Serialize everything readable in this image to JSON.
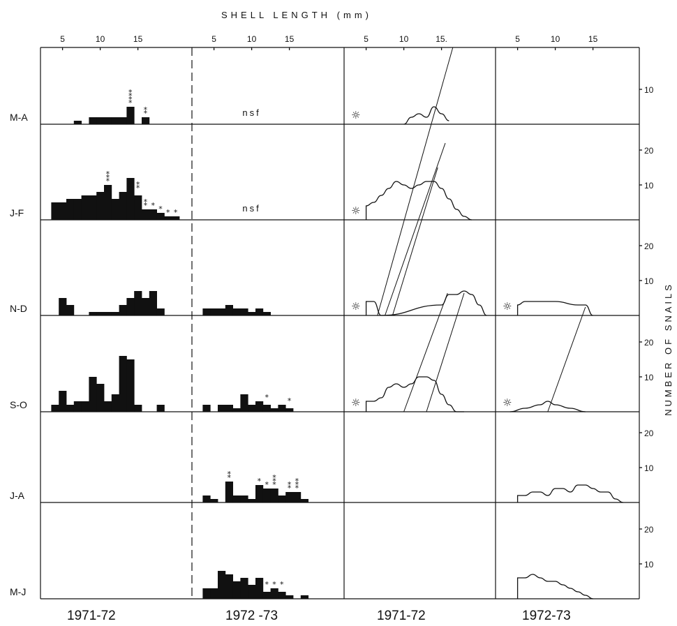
{
  "title": "SHELL LENGTH (mm)",
  "y_title": "NUMBER OF SNAILS",
  "nsf": "nsf",
  "rows": [
    "M-A",
    "J-F",
    "N-D",
    "S-O",
    "J-A",
    "M-J"
  ],
  "column_labels": [
    "1971-72",
    "1972 -73",
    "1971-72",
    "1972-73"
  ],
  "x_ticks": [
    "5",
    "10",
    "15"
  ],
  "x_ticks_col3": [
    "5",
    "10",
    "15."
  ],
  "y_ticks": [
    "10",
    "20"
  ],
  "chart_data": [
    {
      "type": "bar",
      "panel": "1971-72 histograms",
      "xlabel": "SHELL LENGTH (mm)",
      "ylabel": "NUMBER OF SNAILS",
      "xlim": [
        3,
        21.5
      ],
      "bin_width_mm": 1,
      "series": [
        {
          "row": "M-A",
          "bins": [
            [
              7,
              1
            ],
            [
              9,
              2
            ],
            [
              10,
              2
            ],
            [
              11,
              2
            ],
            [
              12,
              2
            ],
            [
              13,
              2
            ],
            [
              14,
              5
            ],
            [
              16,
              2
            ]
          ]
        },
        {
          "row": "J-F",
          "bins": [
            [
              4,
              5
            ],
            [
              5,
              5
            ],
            [
              6,
              6
            ],
            [
              7,
              6
            ],
            [
              8,
              7
            ],
            [
              9,
              7
            ],
            [
              10,
              8
            ],
            [
              11,
              10
            ],
            [
              12,
              6
            ],
            [
              13,
              8
            ],
            [
              14,
              12
            ],
            [
              15,
              7
            ],
            [
              16,
              3
            ],
            [
              17,
              3
            ],
            [
              18,
              2
            ],
            [
              19,
              1
            ],
            [
              20,
              1
            ]
          ]
        },
        {
          "row": "N-D",
          "bins": [
            [
              5,
              5
            ],
            [
              6,
              3
            ],
            [
              9,
              1
            ],
            [
              10,
              1
            ],
            [
              11,
              1
            ],
            [
              12,
              1
            ],
            [
              13,
              3
            ],
            [
              14,
              5
            ],
            [
              15,
              7
            ],
            [
              16,
              5
            ],
            [
              17,
              7
            ],
            [
              18,
              2
            ]
          ]
        },
        {
          "row": "S-O",
          "bins": [
            [
              4,
              2
            ],
            [
              5,
              6
            ],
            [
              6,
              2
            ],
            [
              7,
              3
            ],
            [
              8,
              3
            ],
            [
              9,
              10
            ],
            [
              10,
              8
            ],
            [
              11,
              3
            ],
            [
              12,
              5
            ],
            [
              13,
              16
            ],
            [
              14,
              15
            ],
            [
              15,
              2
            ],
            [
              18,
              2
            ]
          ]
        }
      ]
    },
    {
      "type": "bar",
      "panel": "1972-73 histograms",
      "xlabel": "SHELL LENGTH (mm)",
      "ylabel": "NUMBER OF SNAILS",
      "xlim": [
        3,
        21.5
      ],
      "bin_width_mm": 1,
      "series": [
        {
          "row": "M-A",
          "bins": []
        },
        {
          "row": "J-F",
          "bins": []
        },
        {
          "row": "N-D",
          "bins": [
            [
              4,
              2
            ],
            [
              5,
              2
            ],
            [
              6,
              2
            ],
            [
              7,
              3
            ],
            [
              8,
              2
            ],
            [
              9,
              2
            ],
            [
              10,
              1
            ],
            [
              11,
              2
            ],
            [
              12,
              1
            ]
          ]
        },
        {
          "row": "S-O",
          "bins": [
            [
              4,
              2
            ],
            [
              6,
              2
            ],
            [
              7,
              2
            ],
            [
              8,
              1
            ],
            [
              9,
              5
            ],
            [
              10,
              2
            ],
            [
              11,
              3
            ],
            [
              12,
              2
            ],
            [
              13,
              1
            ],
            [
              14,
              2
            ],
            [
              15,
              1
            ]
          ]
        },
        {
          "row": "J-A",
          "bins": [
            [
              4,
              2
            ],
            [
              5,
              1
            ],
            [
              7,
              6
            ],
            [
              8,
              2
            ],
            [
              9,
              2
            ],
            [
              10,
              1
            ],
            [
              11,
              5
            ],
            [
              12,
              4
            ],
            [
              13,
              4
            ],
            [
              14,
              2
            ],
            [
              15,
              3
            ],
            [
              16,
              3
            ],
            [
              17,
              1
            ]
          ]
        },
        {
          "row": "M-J",
          "bins": [
            [
              4,
              3
            ],
            [
              5,
              3
            ],
            [
              6,
              8
            ],
            [
              7,
              7
            ],
            [
              8,
              5
            ],
            [
              9,
              6
            ],
            [
              10,
              4
            ],
            [
              11,
              6
            ],
            [
              12,
              2
            ],
            [
              13,
              3
            ],
            [
              14,
              2
            ],
            [
              15,
              1
            ],
            [
              17,
              1
            ]
          ]
        }
      ]
    },
    {
      "type": "line",
      "panel": "1971-72 smoothed distributions",
      "xlabel": "SHELL LENGTH (mm)",
      "ylabel": "NUMBER OF SNAILS",
      "xlim": [
        3,
        21.5
      ],
      "series": [
        {
          "row": "M-A",
          "x": [
            10,
            11,
            12,
            13,
            14,
            15,
            16
          ],
          "y": [
            0,
            2,
            3,
            2,
            5,
            3,
            1
          ]
        },
        {
          "row": "J-F",
          "x": [
            5,
            6,
            7,
            8,
            9,
            10,
            11,
            12,
            13,
            14,
            15,
            16,
            17,
            18,
            19
          ],
          "y": [
            4,
            5,
            7,
            9,
            11,
            10,
            9,
            10,
            11,
            11,
            9,
            6,
            3,
            1,
            0
          ]
        },
        {
          "row": "N-D",
          "x": [
            5,
            6,
            7,
            15,
            16,
            17,
            18,
            19,
            20,
            21
          ],
          "y": [
            4,
            4,
            0,
            3,
            6,
            6,
            7,
            6,
            3,
            0
          ]
        },
        {
          "row": "S-O",
          "x": [
            5,
            6,
            7,
            8,
            9,
            10,
            11,
            12,
            13,
            14,
            15,
            16,
            17,
            18
          ],
          "y": [
            3,
            3,
            4,
            7,
            8,
            7,
            8,
            10,
            10,
            9,
            5,
            2,
            0,
            0
          ]
        }
      ]
    },
    {
      "type": "line",
      "panel": "1972-73 smoothed distributions",
      "xlabel": "SHELL LENGTH (mm)",
      "ylabel": "NUMBER OF SNAILS",
      "xlim": [
        3,
        21.5
      ],
      "series": [
        {
          "row": "N-D",
          "x": [
            5,
            6,
            10,
            13,
            14,
            15
          ],
          "y": [
            3,
            4,
            4,
            3,
            3,
            0
          ]
        },
        {
          "row": "S-O",
          "x": [
            4,
            6,
            8,
            9,
            10,
            12,
            14
          ],
          "y": [
            0,
            1,
            2,
            3,
            2,
            1,
            0
          ]
        },
        {
          "row": "J-A",
          "x": [
            5,
            6,
            7,
            8,
            9,
            10,
            11,
            12,
            13,
            14,
            15,
            16,
            17,
            18,
            19
          ],
          "y": [
            2,
            2,
            3,
            3,
            2,
            4,
            4,
            3,
            5,
            5,
            4,
            3,
            3,
            1,
            0
          ]
        },
        {
          "row": "M-J",
          "x": [
            5,
            6,
            7,
            8,
            9,
            10,
            11,
            12,
            13,
            14,
            15
          ],
          "y": [
            6,
            6,
            7,
            6,
            5,
            5,
            4,
            3,
            2,
            1,
            0
          ]
        }
      ]
    }
  ]
}
